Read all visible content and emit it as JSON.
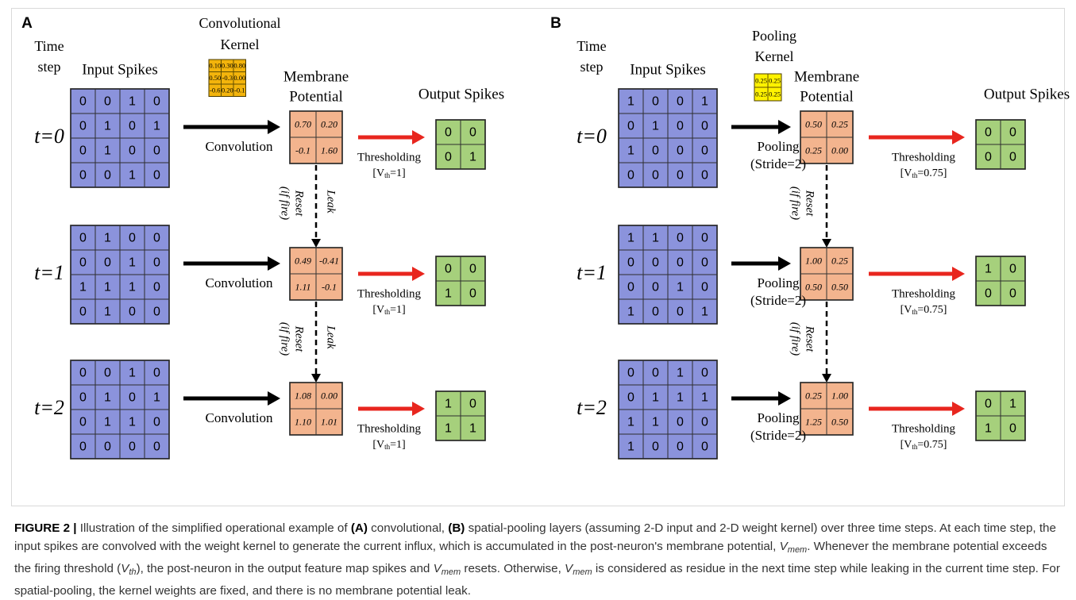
{
  "panels": [
    {
      "label": "A",
      "time_step_label": [
        "Time",
        "step"
      ],
      "input_title": "Input Spikes",
      "kernel_title": [
        "Convolutional",
        "Kernel"
      ],
      "kernel": [
        [
          "0.10",
          "0.30",
          "0.80"
        ],
        [
          "0.50",
          "-0.3",
          "0.00"
        ],
        [
          "-0.6",
          "0.20",
          "-0.1"
        ]
      ],
      "membrane_title": [
        "Membrane",
        "Potential"
      ],
      "output_title": "Output Spikes",
      "operation": [
        "Convolution"
      ],
      "threshold": [
        "Thresholding",
        "[V",
        "th",
        "=1]"
      ],
      "arrow_labels": {
        "leak": "Leak",
        "reset": "Reset",
        "if_fire": "(if fire)"
      },
      "steps": [
        {
          "time": "t=0",
          "input": [
            [
              "0",
              "0",
              "1",
              "0"
            ],
            [
              "0",
              "1",
              "0",
              "1"
            ],
            [
              "0",
              "1",
              "0",
              "0"
            ],
            [
              "0",
              "0",
              "1",
              "0"
            ]
          ],
          "membrane": [
            [
              "0.70",
              "0.20"
            ],
            [
              "-0.1",
              "1.60"
            ]
          ],
          "output": [
            [
              "0",
              "0"
            ],
            [
              "0",
              "1"
            ]
          ]
        },
        {
          "time": "t=1",
          "input": [
            [
              "0",
              "1",
              "0",
              "0"
            ],
            [
              "0",
              "0",
              "1",
              "0"
            ],
            [
              "1",
              "1",
              "1",
              "0"
            ],
            [
              "0",
              "1",
              "0",
              "0"
            ]
          ],
          "membrane": [
            [
              "0.49",
              "-0.41"
            ],
            [
              "1.11",
              "-0.1"
            ]
          ],
          "output": [
            [
              "0",
              "0"
            ],
            [
              "1",
              "0"
            ]
          ]
        },
        {
          "time": "t=2",
          "input": [
            [
              "0",
              "0",
              "1",
              "0"
            ],
            [
              "0",
              "1",
              "0",
              "1"
            ],
            [
              "0",
              "1",
              "1",
              "0"
            ],
            [
              "0",
              "0",
              "0",
              "0"
            ]
          ],
          "membrane": [
            [
              "1.08",
              "0.00"
            ],
            [
              "1.10",
              "1.01"
            ]
          ],
          "output": [
            [
              "1",
              "0"
            ],
            [
              "1",
              "1"
            ]
          ]
        }
      ]
    },
    {
      "label": "B",
      "time_step_label": [
        "Time",
        "step"
      ],
      "input_title": "Input Spikes",
      "kernel_title": [
        "Pooling",
        "Kernel"
      ],
      "kernel": [
        [
          "0.25",
          "0.25"
        ],
        [
          "0.25",
          "0.25"
        ]
      ],
      "membrane_title": [
        "Membrane",
        "Potential"
      ],
      "output_title": "Output Spikes",
      "operation": [
        "Pooling",
        "(Stride=2)"
      ],
      "threshold": [
        "Thresholding",
        "[V",
        "th",
        "=0.75]"
      ],
      "arrow_labels": {
        "reset": "Reset",
        "if_fire": "(if fire)"
      },
      "steps": [
        {
          "time": "t=0",
          "input": [
            [
              "1",
              "0",
              "0",
              "1"
            ],
            [
              "0",
              "1",
              "0",
              "0"
            ],
            [
              "1",
              "0",
              "0",
              "0"
            ],
            [
              "0",
              "0",
              "0",
              "0"
            ]
          ],
          "membrane": [
            [
              "0.50",
              "0.25"
            ],
            [
              "0.25",
              "0.00"
            ]
          ],
          "output": [
            [
              "0",
              "0"
            ],
            [
              "0",
              "0"
            ]
          ]
        },
        {
          "time": "t=1",
          "input": [
            [
              "1",
              "1",
              "0",
              "0"
            ],
            [
              "0",
              "0",
              "0",
              "0"
            ],
            [
              "0",
              "0",
              "1",
              "0"
            ],
            [
              "1",
              "0",
              "0",
              "1"
            ]
          ],
          "membrane": [
            [
              "1.00",
              "0.25"
            ],
            [
              "0.50",
              "0.50"
            ]
          ],
          "output": [
            [
              "1",
              "0"
            ],
            [
              "0",
              "0"
            ]
          ]
        },
        {
          "time": "t=2",
          "input": [
            [
              "0",
              "0",
              "1",
              "0"
            ],
            [
              "0",
              "1",
              "1",
              "1"
            ],
            [
              "1",
              "1",
              "0",
              "0"
            ],
            [
              "1",
              "0",
              "0",
              "0"
            ]
          ],
          "membrane": [
            [
              "0.25",
              "1.00"
            ],
            [
              "1.25",
              "0.50"
            ]
          ],
          "output": [
            [
              "0",
              "1"
            ],
            [
              "1",
              "0"
            ]
          ]
        }
      ]
    }
  ],
  "caption": {
    "label": "FIGURE 2 |",
    "t1": "Illustration of the simplified operational example of",
    "a": "(A)",
    "t2": "convolutional,",
    "b": "(B)",
    "t3": "spatial-pooling layers (assuming 2-D input and 2-D weight kernel) over three time steps. At each time step, the input spikes are convolved with the weight kernel to generate the current influx, which is accumulated in the post-neuron's membrane potential,",
    "vmem": "V",
    "vmem_sub": "mem",
    "t4": ". Whenever the membrane potential exceeds the firing threshold (",
    "vth": "V",
    "vth_sub": "th",
    "t5": "), the post-neuron in the output feature map spikes and",
    "t6": "resets. Otherwise,",
    "t7": "is considered as residue in the next time step while leaking in the current time step. For spatial-pooling, the kernel weights are fixed, and there is no membrane potential leak."
  },
  "colors": {
    "input_fill": "#8b93dc",
    "kernel_conv_fill": "#f3b40c",
    "kernel_pool_fill": "#fff200",
    "membrane_fill": "#f3b48e",
    "output_fill": "#a6d07c",
    "red_arrow": "#e8261e",
    "black": "#000000"
  }
}
